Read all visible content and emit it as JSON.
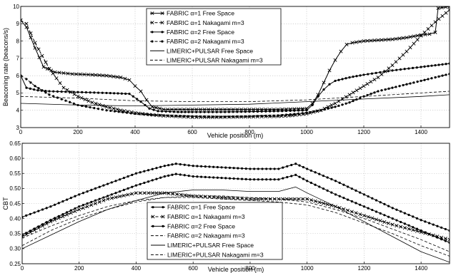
{
  "chart_data": [
    {
      "type": "line",
      "xlabel": "Vehicle position (m)",
      "ylabel": "Beaconing rate (beacons/s)",
      "xlim": [
        0,
        1500
      ],
      "ylim": [
        3,
        10
      ],
      "xticks": [
        0,
        200,
        400,
        600,
        800,
        1000,
        1200,
        1400
      ],
      "yticks": [
        3,
        4,
        5,
        6,
        7,
        8,
        9,
        10
      ],
      "grid": true,
      "legend_position": "top-left",
      "series": [
        {
          "name": "FABRIC α=1 Free Space",
          "color": "#000000",
          "dash": "solid",
          "marker": "x",
          "x": [
            0,
            20,
            50,
            80,
            120,
            180,
            250,
            300,
            350,
            380,
            400,
            420,
            440,
            460,
            500,
            600,
            700,
            800,
            900,
            1000,
            1020,
            1040,
            1060,
            1080,
            1100,
            1120,
            1140,
            1160,
            1200,
            1250,
            1300,
            1350,
            1400,
            1430,
            1450,
            1460,
            1500
          ],
          "y": [
            9.2,
            8.8,
            7.6,
            6.5,
            6.2,
            6.1,
            6.05,
            6.0,
            5.9,
            5.75,
            5.4,
            5.1,
            4.6,
            4.2,
            4.05,
            4.05,
            4.05,
            4.05,
            4.05,
            4.1,
            4.4,
            4.9,
            5.6,
            6.3,
            6.9,
            7.4,
            7.8,
            7.9,
            8.0,
            8.05,
            8.1,
            8.2,
            8.35,
            8.4,
            8.5,
            9.9,
            10.0
          ]
        },
        {
          "name": "FABRIC α=1 Nakagami m=3",
          "color": "#000000",
          "dash": "dashed",
          "marker": "x",
          "x": [
            0,
            20,
            50,
            100,
            150,
            200,
            250,
            300,
            350,
            400,
            450,
            500,
            600,
            700,
            800,
            900,
            950,
            1000,
            1050,
            1100,
            1150,
            1200,
            1250,
            1300,
            1350,
            1400,
            1450,
            1500
          ],
          "y": [
            9.2,
            9.0,
            7.9,
            6.4,
            5.3,
            4.8,
            4.45,
            4.2,
            4.0,
            3.85,
            3.75,
            3.68,
            3.6,
            3.6,
            3.62,
            3.65,
            3.7,
            3.8,
            4.0,
            4.4,
            4.9,
            5.4,
            5.9,
            6.6,
            7.4,
            8.3,
            9.1,
            9.8
          ]
        },
        {
          "name": "FABRIC α=2 Free Space",
          "color": "#000000",
          "dash": "solid",
          "marker": "dot",
          "x": [
            0,
            20,
            60,
            100,
            200,
            300,
            380,
            420,
            450,
            480,
            550,
            600,
            700,
            800,
            900,
            1000,
            1020,
            1040,
            1060,
            1080,
            1100,
            1150,
            1200,
            1300,
            1400,
            1450,
            1500
          ],
          "y": [
            6.0,
            5.3,
            5.15,
            5.1,
            5.05,
            5.0,
            4.95,
            4.5,
            4.1,
            3.95,
            3.9,
            3.9,
            3.9,
            3.92,
            3.95,
            4.0,
            4.3,
            4.8,
            5.2,
            5.5,
            5.7,
            5.9,
            6.05,
            6.3,
            6.5,
            6.6,
            6.7
          ]
        },
        {
          "name": "FABRIC α=2 Nakagami m=3",
          "color": "#000000",
          "dash": "dashed",
          "marker": "dot",
          "x": [
            0,
            20,
            50,
            100,
            200,
            300,
            400,
            500,
            600,
            700,
            800,
            900,
            1000,
            1050,
            1100,
            1150,
            1200,
            1250,
            1300,
            1350,
            1400,
            1450,
            1500
          ],
          "y": [
            6.0,
            5.8,
            5.4,
            4.9,
            4.3,
            4.0,
            3.8,
            3.7,
            3.65,
            3.62,
            3.65,
            3.7,
            3.85,
            4.0,
            4.2,
            4.45,
            4.8,
            5.1,
            5.3,
            5.5,
            5.7,
            5.9,
            6.1
          ]
        },
        {
          "name": "LIMERIC+PULSAR Free Space",
          "color": "#000000",
          "dash": "solid",
          "marker": "none",
          "x": [
            0,
            200,
            400,
            600,
            800,
            1000,
            1200,
            1400,
            1500
          ],
          "y": [
            4.4,
            4.3,
            4.25,
            4.3,
            4.35,
            4.5,
            4.65,
            4.8,
            4.9
          ]
        },
        {
          "name": "LIMERIC+PULSAR Nakagami m=3",
          "color": "#000000",
          "dash": "dashed",
          "marker": "none",
          "x": [
            0,
            200,
            400,
            600,
            800,
            1000,
            1200,
            1400,
            1500
          ],
          "y": [
            4.8,
            4.7,
            4.55,
            4.5,
            4.5,
            4.6,
            4.8,
            5.0,
            5.1
          ]
        }
      ]
    },
    {
      "type": "line",
      "xlabel": "Vehicle position (m)",
      "ylabel": "CBT",
      "xlim": [
        0,
        1500
      ],
      "ylim": [
        0.25,
        0.65
      ],
      "xticks": [
        0,
        200,
        400,
        600,
        800,
        1000,
        1200,
        1400
      ],
      "yticks": [
        0.25,
        0.3,
        0.35,
        0.4,
        0.45,
        0.5,
        0.55,
        0.6,
        0.65
      ],
      "grid": true,
      "legend_position": "bottom-center",
      "series": [
        {
          "name": "FABRIC α=1 Free Space",
          "color": "#000000",
          "dash": "solid",
          "marker": "dot",
          "x": [
            0,
            100,
            200,
            300,
            400,
            500,
            540,
            600,
            700,
            800,
            900,
            960,
            1000,
            1100,
            1200,
            1300,
            1400,
            1500
          ],
          "y": [
            0.405,
            0.44,
            0.48,
            0.515,
            0.55,
            0.575,
            0.582,
            0.575,
            0.57,
            0.565,
            0.565,
            0.582,
            0.565,
            0.525,
            0.48,
            0.435,
            0.395,
            0.36
          ]
        },
        {
          "name": "FABRIC α=1 Nakagami m=3",
          "color": "#000000",
          "dash": "dashed",
          "marker": "x",
          "x": [
            0,
            100,
            200,
            300,
            400,
            500,
            600,
            700,
            800,
            900,
            1000,
            1100,
            1200,
            1300,
            1400,
            1500
          ],
          "y": [
            0.34,
            0.39,
            0.43,
            0.465,
            0.485,
            0.485,
            0.475,
            0.47,
            0.465,
            0.465,
            0.465,
            0.44,
            0.41,
            0.38,
            0.355,
            0.33
          ]
        },
        {
          "name": "FABRIC α=2 Free Space",
          "color": "#000000",
          "dash": "solid",
          "marker": "dot",
          "x": [
            0,
            100,
            200,
            300,
            400,
            500,
            540,
            600,
            700,
            800,
            900,
            960,
            1000,
            1100,
            1200,
            1300,
            1400,
            1500
          ],
          "y": [
            0.345,
            0.395,
            0.44,
            0.475,
            0.51,
            0.54,
            0.548,
            0.54,
            0.535,
            0.53,
            0.53,
            0.545,
            0.525,
            0.48,
            0.44,
            0.4,
            0.36,
            0.32
          ]
        },
        {
          "name": "FABRIC α=2 Nakagami m=3",
          "color": "#000000",
          "dash": "dashed",
          "marker": "none",
          "x": [
            0,
            100,
            200,
            300,
            400,
            500,
            600,
            700,
            800,
            900,
            1000,
            1100,
            1200,
            1300,
            1400,
            1500
          ],
          "y": [
            0.31,
            0.36,
            0.4,
            0.43,
            0.455,
            0.47,
            0.475,
            0.475,
            0.47,
            0.465,
            0.455,
            0.43,
            0.4,
            0.365,
            0.33,
            0.29
          ]
        },
        {
          "name": "LIMERIC+PULSAR Free Space",
          "color": "#000000",
          "dash": "solid",
          "marker": "none",
          "x": [
            0,
            100,
            200,
            300,
            400,
            500,
            600,
            700,
            800,
            900,
            960,
            1000,
            1100,
            1200,
            1300,
            1400,
            1500
          ],
          "y": [
            0.3,
            0.345,
            0.39,
            0.43,
            0.46,
            0.485,
            0.495,
            0.495,
            0.49,
            0.49,
            0.505,
            0.485,
            0.44,
            0.39,
            0.34,
            0.29,
            0.255
          ]
        },
        {
          "name": "LIMERIC+PULSAR Nakagami m=3",
          "color": "#000000",
          "dash": "dashed",
          "marker": "none",
          "x": [
            0,
            100,
            200,
            300,
            400,
            500,
            600,
            700,
            800,
            900,
            1000,
            1100,
            1200,
            1300,
            1400,
            1500
          ],
          "y": [
            0.335,
            0.375,
            0.41,
            0.44,
            0.46,
            0.47,
            0.47,
            0.465,
            0.46,
            0.455,
            0.445,
            0.42,
            0.385,
            0.35,
            0.31,
            0.275
          ]
        }
      ]
    }
  ]
}
